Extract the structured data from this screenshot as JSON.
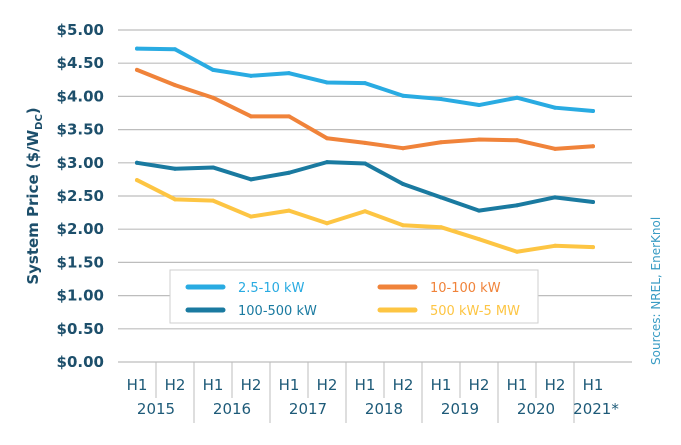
{
  "chart_data": {
    "type": "line",
    "ylabel": "System Price ($/W",
    "ylabel_sub": "DC",
    "ylabel_end": ")",
    "ylim": [
      0,
      5
    ],
    "yticks": [
      "$0.00",
      "$0.50",
      "$1.00",
      "$1.50",
      "$2.00",
      "$2.50",
      "$3.00",
      "$3.50",
      "$4.00",
      "$4.50",
      "$5.00"
    ],
    "grid": true,
    "legend_position": "bottom-center (inside plot)",
    "categories": [
      "H1",
      "H2",
      "H1",
      "H2",
      "H1",
      "H2",
      "H1",
      "H2",
      "H1",
      "H2",
      "H1",
      "H2",
      "H1"
    ],
    "years": [
      "2015",
      "2016",
      "2017",
      "2018",
      "2019",
      "2020",
      "2021*"
    ],
    "series": [
      {
        "name": "2.5-10 kW",
        "color": "#29abe2",
        "values": [
          4.72,
          4.71,
          4.4,
          4.31,
          4.35,
          4.21,
          4.2,
          4.01,
          3.96,
          3.87,
          3.98,
          3.83,
          3.78
        ]
      },
      {
        "name": "10-100 kW",
        "color": "#f0833a",
        "values": [
          4.4,
          4.17,
          3.98,
          3.7,
          3.7,
          3.37,
          3.3,
          3.22,
          3.31,
          3.35,
          3.34,
          3.21,
          3.25
        ]
      },
      {
        "name": "100-500 kW",
        "color": "#1a7aa0",
        "values": [
          3.0,
          2.91,
          2.93,
          2.75,
          2.85,
          3.01,
          2.99,
          2.68,
          2.48,
          2.28,
          2.36,
          2.48,
          2.41
        ]
      },
      {
        "name": "500 kW-5 MW",
        "color": "#fdc543",
        "values": [
          2.74,
          2.45,
          2.43,
          2.19,
          2.28,
          2.09,
          2.27,
          2.06,
          2.03,
          1.85,
          1.66,
          1.75,
          1.73
        ]
      }
    ],
    "source": "Sources: NREL, EnerKnol"
  }
}
